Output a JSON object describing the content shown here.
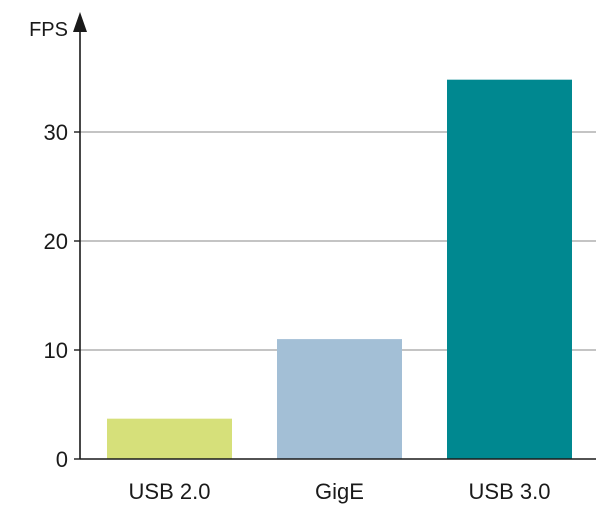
{
  "chart_data": {
    "type": "bar",
    "categories": [
      "USB 2.0",
      "GigE",
      "USB 3.0"
    ],
    "values": [
      3.7,
      11.0,
      34.8
    ],
    "colors": [
      "#d6e07a",
      "#a3bfd6",
      "#008890"
    ],
    "ylabel": "FPS",
    "ylim": [
      0,
      35
    ],
    "yticks": [
      0,
      10,
      20,
      30
    ],
    "grid": true
  }
}
